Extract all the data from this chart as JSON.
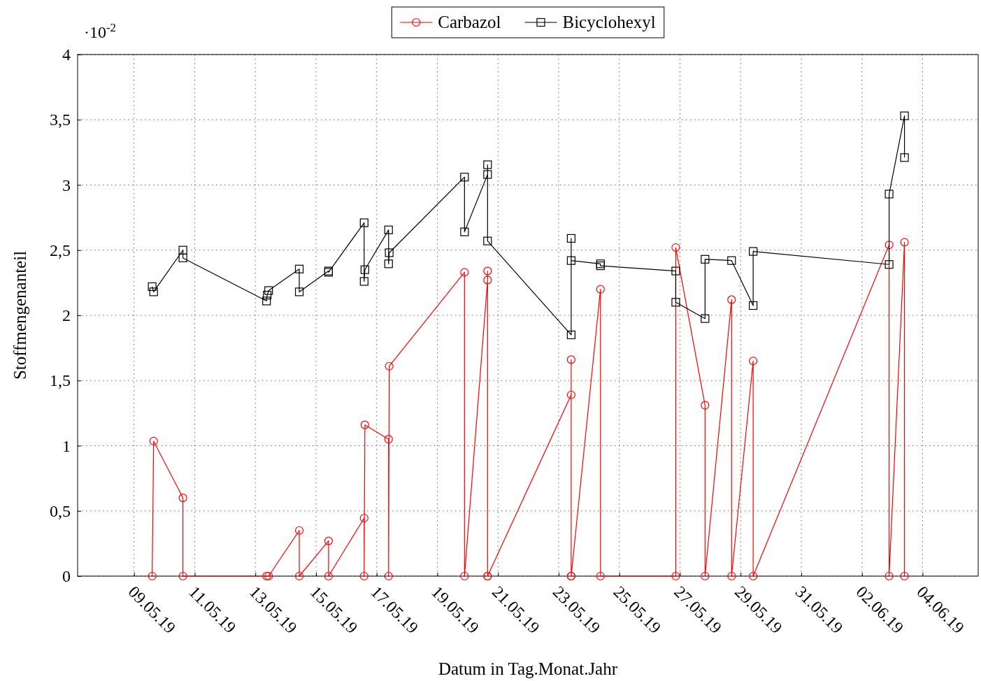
{
  "chart_data": {
    "type": "line",
    "xlabel": "Datum in Tag.Monat.Jahr",
    "ylabel": "Stoffmengenanteil",
    "annotations": [
      "·10$^{-2}$"
    ],
    "xlim": [
      "--05-07T03:20",
      "--06-05T20:00"
    ],
    "xticks": [
      {
        "value": "--05-09",
        "label": "09.05.19"
      },
      {
        "value": "--05-11",
        "label": "11.05.19"
      },
      {
        "value": "--05-13",
        "label": "13.05.19"
      },
      {
        "value": "--05-15",
        "label": "15.05.19"
      },
      {
        "value": "--05-17",
        "label": "17.05.19"
      },
      {
        "value": "--05-19",
        "label": "19.05.19"
      },
      {
        "value": "--05-21",
        "label": "21.05.19"
      },
      {
        "value": "--05-23",
        "label": "23.05.19"
      },
      {
        "value": "--05-25",
        "label": "25.05.19"
      },
      {
        "value": "--05-27",
        "label": "27.05.19"
      },
      {
        "value": "--05-29",
        "label": "29.05.19"
      },
      {
        "value": "--05-31",
        "label": "31.05.19"
      },
      {
        "value": "--06-02",
        "label": "02.06.19"
      },
      {
        "value": "--06-04",
        "label": "04.06.19"
      }
    ],
    "ylim": [
      0,
      4
    ],
    "yticks": [
      0,
      {
        "value": 0.5,
        "label": "0,5"
      },
      1,
      {
        "value": 1.5,
        "label": "1,5"
      },
      2,
      {
        "value": 2.5,
        "label": "2,5"
      },
      3,
      {
        "value": 3.5,
        "label": "3,5"
      },
      4
    ],
    "grid": true,
    "legend": "top",
    "line_style": "solid",
    "series": [
      {
        "name": "Carbazol",
        "color": "#ff0000",
        "marker": "circle",
        "x": [
          "--05-09T14:20",
          "--05-09T15:30",
          "--05-10T14:40",
          "--05-10T14:40",
          "--05-13T08:50",
          "--05-13T10:30",
          "--05-14T10:45",
          "--05-14T10:45",
          "--05-15T09:55",
          "--05-15T09:55",
          "--05-16T14:05",
          "--05-16T14:05",
          "--05-16T14:40",
          "--05-17T09:25",
          "--05-17T09:25",
          "--05-17T09:55",
          "--05-19T21:30",
          "--05-19T21:30",
          "--05-20T15:45",
          "--05-20T15:45",
          "--05-20T15:45",
          "--05-20T15:45",
          "--05-23T09:55",
          "--05-23T09:55",
          "--05-23T09:55",
          "--05-23T09:55",
          "--05-24T09:05",
          "--05-24T09:05",
          "--05-26T20:40",
          "--05-26T20:40",
          "--05-27T19:50",
          "--05-27T19:50",
          "--05-28T16:50",
          "--05-28T16:50",
          "--05-29T09:55",
          "--05-29T09:55",
          "--06-02T21:30",
          "--06-02T21:30",
          "--06-03T09:40",
          "--06-03T09:40"
        ],
        "values": [
          0,
          1.035,
          0.6,
          0,
          0,
          0,
          0.35,
          0,
          0.27,
          0,
          0.445,
          0,
          1.16,
          1.05,
          0,
          1.61,
          2.33,
          0,
          2.27,
          0,
          2.34,
          0,
          1.39,
          0,
          1.66,
          0,
          2.2,
          0,
          0,
          2.52,
          1.31,
          0,
          2.12,
          0,
          1.65,
          0,
          2.54,
          0,
          2.56,
          0
        ]
      },
      {
        "name": "Bicyclohexyl",
        "color": "#000000",
        "marker": "square",
        "x": [
          "--05-09T14:20",
          "--05-09T15:30",
          "--05-10T14:40",
          "--05-10T14:40",
          "--05-13T08:50",
          "--05-13T09:20",
          "--05-13T10:30",
          "--05-14T10:45",
          "--05-14T10:45",
          "--05-15T09:55",
          "--05-15T09:55",
          "--05-16T14:05",
          "--05-16T14:05",
          "--05-16T14:40",
          "--05-17T09:25",
          "--05-17T09:25",
          "--05-17T09:55",
          "--05-19T21:30",
          "--05-19T21:30",
          "--05-20T15:45",
          "--05-20T15:45",
          "--05-20T15:45",
          "--05-23T09:55",
          "--05-23T09:55",
          "--05-23T09:55",
          "--05-24T09:05",
          "--05-24T09:05",
          "--05-26T20:40",
          "--05-26T20:40",
          "--05-27T19:50",
          "--05-27T19:50",
          "--05-28T16:50",
          "--05-29T09:55",
          "--05-29T09:55",
          "--06-02T21:30",
          "--06-02T21:30",
          "--06-03T09:40",
          "--06-03T09:40"
        ],
        "values": [
          2.22,
          2.18,
          2.5,
          2.44,
          2.11,
          2.155,
          2.19,
          2.355,
          2.18,
          2.34,
          2.33,
          2.71,
          2.26,
          2.35,
          2.655,
          2.395,
          2.48,
          3.06,
          2.64,
          3.08,
          3.155,
          2.57,
          1.85,
          2.59,
          2.42,
          2.395,
          2.38,
          2.34,
          2.1,
          1.975,
          2.43,
          2.42,
          2.075,
          2.49,
          2.39,
          2.93,
          3.53,
          3.21
        ]
      }
    ]
  }
}
